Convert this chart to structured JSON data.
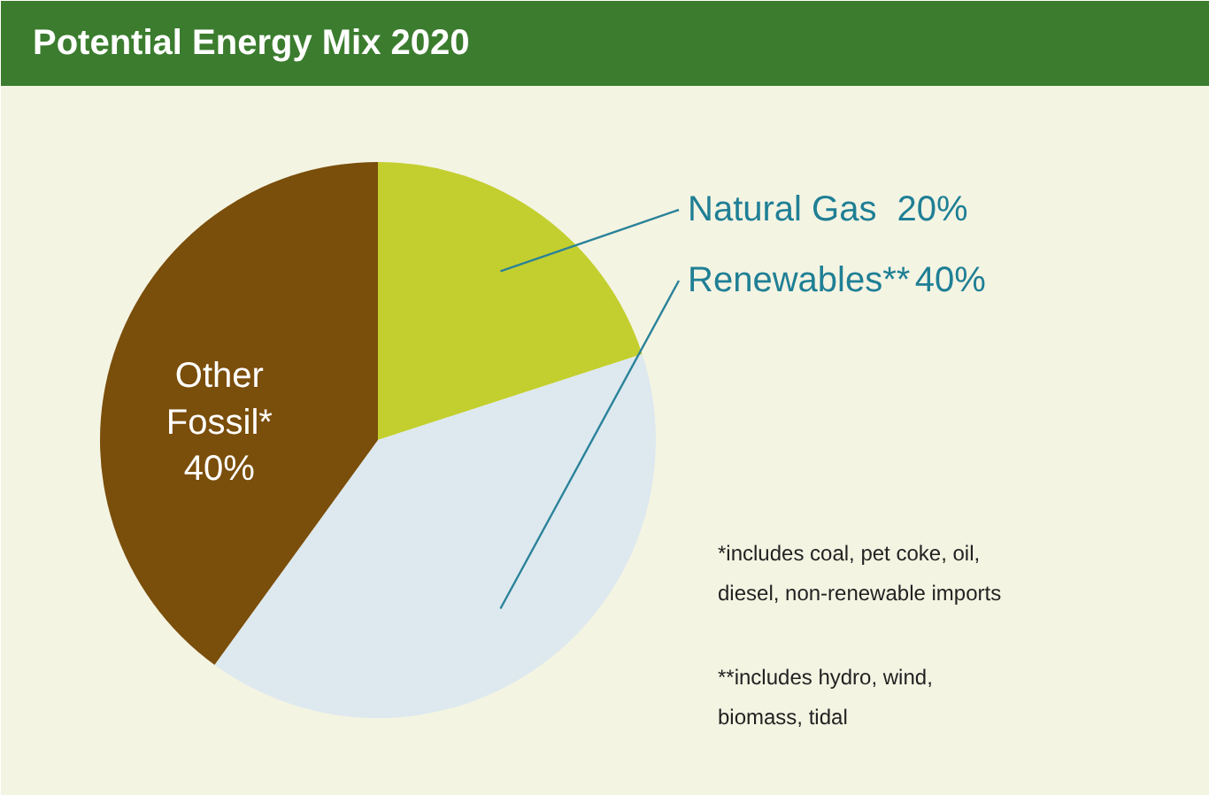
{
  "chart_data": {
    "type": "pie",
    "title": "Potential Energy Mix 2020",
    "categories": [
      "Natural Gas",
      "Renewables**",
      "Other Fossil*"
    ],
    "values": [
      20,
      40,
      40
    ],
    "value_labels": [
      "20%",
      "40%",
      "40%"
    ],
    "colors": [
      "#c3cf2f",
      "#dde9ef",
      "#7a4e0b"
    ],
    "annotations": [
      "*includes coal, pet coke, oil,\n  diesel, non-renewable imports",
      "**includes hydro, wind,\n   biomass, tidal"
    ]
  }
}
